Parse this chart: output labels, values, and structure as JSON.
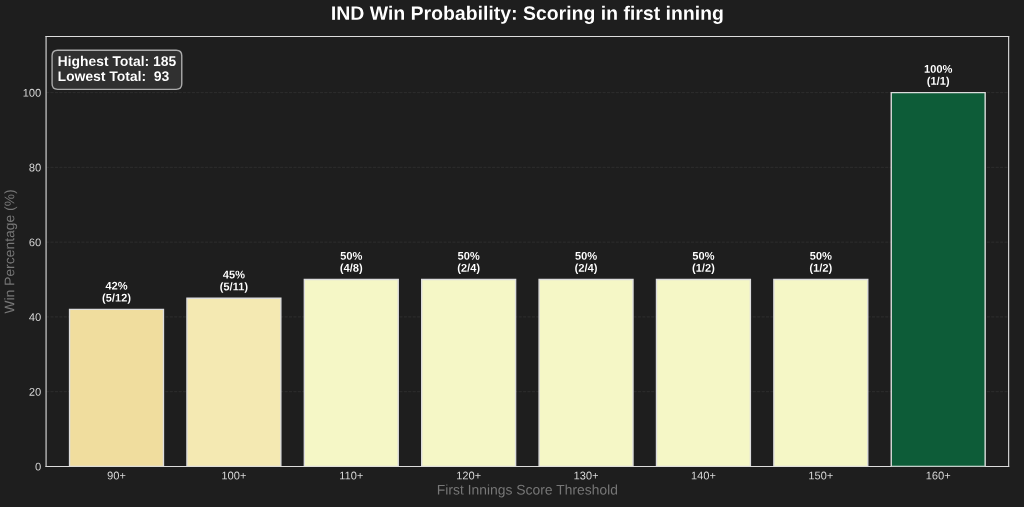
{
  "chart_data": {
    "type": "bar",
    "title": "IND Win Probability: Scoring in first inning",
    "xlabel": "First Innings Score Threshold",
    "ylabel": "Win Percentage (%)",
    "categories": [
      "90+",
      "100+",
      "110+",
      "120+",
      "130+",
      "140+",
      "150+",
      "160+"
    ],
    "values": [
      42,
      45,
      50,
      50,
      50,
      50,
      50,
      100
    ],
    "colors": [
      "#f0dd9e",
      "#f4e9b2",
      "#f5f7c6",
      "#f5f7c6",
      "#f5f7c6",
      "#f5f7c6",
      "#f5f7c6",
      "#0d5c38"
    ],
    "value_labels": [
      "42%\n(5/12)",
      "45%\n(5/11)",
      "50%\n(4/8)",
      "50%\n(2/4)",
      "50%\n(2/4)",
      "50%\n(1/2)",
      "50%\n(1/2)",
      "100%\n(1/1)"
    ],
    "annotations": [
      "Highest Total: 185\nLowest Total:  93"
    ],
    "ylim": [
      0,
      115
    ],
    "yticks": [
      0,
      20,
      40,
      60,
      80,
      100
    ],
    "grid": "y"
  }
}
